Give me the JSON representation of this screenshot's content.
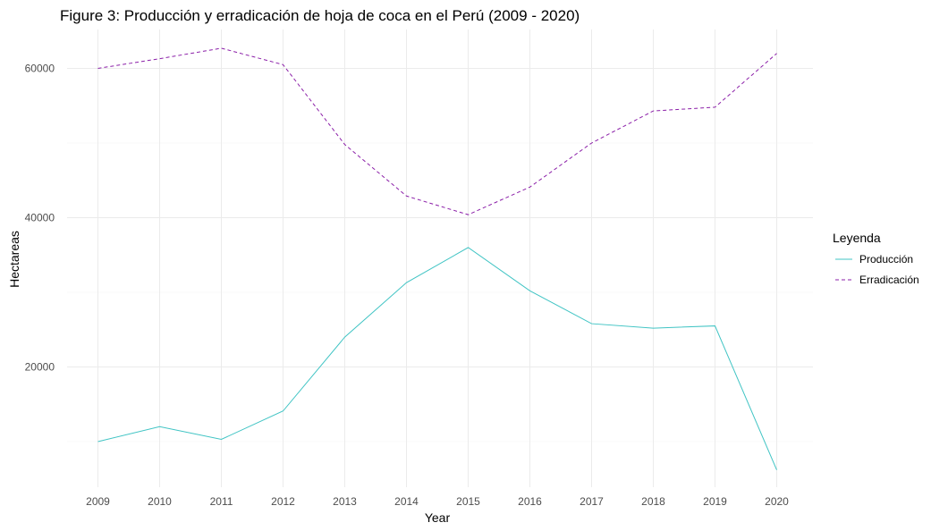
{
  "chart_data": {
    "type": "line",
    "title": "Figure 3: Producción y erradicación de hoja de coca en el Perú (2009 - 2020)",
    "xlabel": "Year",
    "ylabel": "Hectareas",
    "x": [
      2009,
      2010,
      2011,
      2012,
      2013,
      2014,
      2015,
      2016,
      2017,
      2018,
      2019,
      2020
    ],
    "xticks": [
      "2009",
      "2010",
      "2011",
      "2012",
      "2013",
      "2014",
      "2015",
      "2016",
      "2017",
      "2018",
      "2019",
      "2020"
    ],
    "yticks": [
      {
        "value": 20000,
        "label": "20000"
      },
      {
        "value": 40000,
        "label": "40000"
      },
      {
        "value": 60000,
        "label": "60000"
      }
    ],
    "ylim": [
      4500,
      66000
    ],
    "grid": true,
    "legend": {
      "title": "Leyenda",
      "position": "right"
    },
    "series": [
      {
        "name": "Producción",
        "color": "#40c4c4",
        "dash": "solid",
        "values": [
          10000,
          12000,
          10300,
          14100,
          24000,
          31300,
          36000,
          30200,
          25800,
          25200,
          25500,
          6200
        ]
      },
      {
        "name": "Erradicación",
        "color": "#8b1fa8",
        "dash": "dashed",
        "values": [
          60000,
          61300,
          62700,
          60500,
          49800,
          42900,
          40400,
          44100,
          50000,
          54300,
          54800,
          62000
        ]
      }
    ]
  }
}
